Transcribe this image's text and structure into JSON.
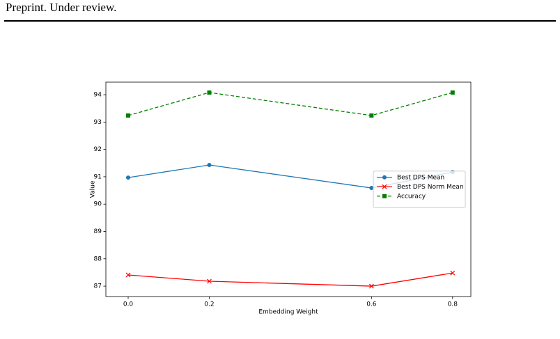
{
  "header": {
    "text": "Preprint. Under review."
  },
  "chart_data": {
    "type": "line",
    "x_label": "Embedding Weight",
    "y_label": "Value",
    "x": [
      0.0,
      0.2,
      0.6,
      0.8
    ],
    "series": [
      {
        "name": "Best DPS Mean",
        "color": "#1f77b4",
        "marker": "circle",
        "linestyle": "-",
        "values": [
          90.97,
          91.43,
          90.59,
          91.17
        ]
      },
      {
        "name": "Best DPS Norm Mean",
        "color": "#ff0000",
        "marker": "x",
        "linestyle": "-",
        "values": [
          87.41,
          87.18,
          87.0,
          87.48
        ]
      },
      {
        "name": "Accuracy",
        "color": "#008000",
        "marker": "square",
        "linestyle": "--",
        "values": [
          93.24,
          94.08,
          93.24,
          94.08
        ]
      }
    ],
    "xlim": [
      -0.055,
      0.845
    ],
    "ylim": [
      86.62,
      94.46
    ],
    "xticks": [
      {
        "value": 0,
        "label": "0.0"
      },
      0.2,
      0.6,
      0.8
    ],
    "yticks": [
      87,
      88,
      89,
      90,
      91,
      92,
      93,
      94
    ],
    "grid": false,
    "legend": "center right"
  }
}
